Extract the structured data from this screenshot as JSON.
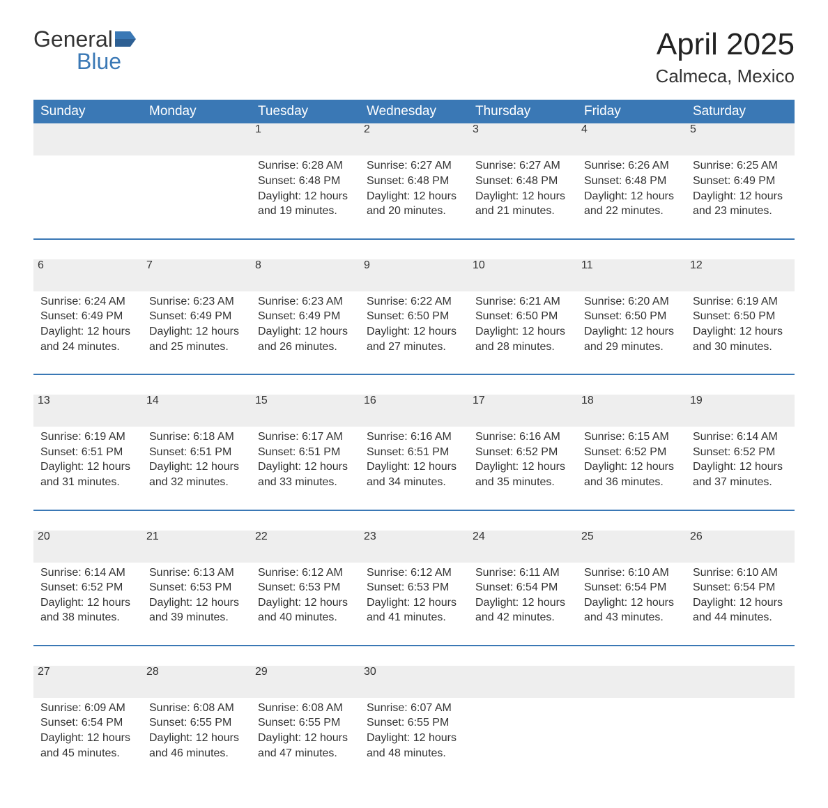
{
  "logo": {
    "word1": "General",
    "word2": "Blue",
    "accent_color": "#3a78b5"
  },
  "title": "April 2025",
  "subtitle": "Calmeca, Mexico",
  "colors": {
    "header_bg": "#3a78b5",
    "header_fg": "#ffffff",
    "daynum_bg": "#eeeeee",
    "daynum_fg": "#555555",
    "text": "#333333",
    "background": "#ffffff"
  },
  "day_headers": [
    "Sunday",
    "Monday",
    "Tuesday",
    "Wednesday",
    "Thursday",
    "Friday",
    "Saturday"
  ],
  "weeks": [
    [
      null,
      null,
      {
        "n": "1",
        "sr": "Sunrise: 6:28 AM",
        "ss": "Sunset: 6:48 PM",
        "dl": "Daylight: 12 hours and 19 minutes."
      },
      {
        "n": "2",
        "sr": "Sunrise: 6:27 AM",
        "ss": "Sunset: 6:48 PM",
        "dl": "Daylight: 12 hours and 20 minutes."
      },
      {
        "n": "3",
        "sr": "Sunrise: 6:27 AM",
        "ss": "Sunset: 6:48 PM",
        "dl": "Daylight: 12 hours and 21 minutes."
      },
      {
        "n": "4",
        "sr": "Sunrise: 6:26 AM",
        "ss": "Sunset: 6:48 PM",
        "dl": "Daylight: 12 hours and 22 minutes."
      },
      {
        "n": "5",
        "sr": "Sunrise: 6:25 AM",
        "ss": "Sunset: 6:49 PM",
        "dl": "Daylight: 12 hours and 23 minutes."
      }
    ],
    [
      {
        "n": "6",
        "sr": "Sunrise: 6:24 AM",
        "ss": "Sunset: 6:49 PM",
        "dl": "Daylight: 12 hours and 24 minutes."
      },
      {
        "n": "7",
        "sr": "Sunrise: 6:23 AM",
        "ss": "Sunset: 6:49 PM",
        "dl": "Daylight: 12 hours and 25 minutes."
      },
      {
        "n": "8",
        "sr": "Sunrise: 6:23 AM",
        "ss": "Sunset: 6:49 PM",
        "dl": "Daylight: 12 hours and 26 minutes."
      },
      {
        "n": "9",
        "sr": "Sunrise: 6:22 AM",
        "ss": "Sunset: 6:50 PM",
        "dl": "Daylight: 12 hours and 27 minutes."
      },
      {
        "n": "10",
        "sr": "Sunrise: 6:21 AM",
        "ss": "Sunset: 6:50 PM",
        "dl": "Daylight: 12 hours and 28 minutes."
      },
      {
        "n": "11",
        "sr": "Sunrise: 6:20 AM",
        "ss": "Sunset: 6:50 PM",
        "dl": "Daylight: 12 hours and 29 minutes."
      },
      {
        "n": "12",
        "sr": "Sunrise: 6:19 AM",
        "ss": "Sunset: 6:50 PM",
        "dl": "Daylight: 12 hours and 30 minutes."
      }
    ],
    [
      {
        "n": "13",
        "sr": "Sunrise: 6:19 AM",
        "ss": "Sunset: 6:51 PM",
        "dl": "Daylight: 12 hours and 31 minutes."
      },
      {
        "n": "14",
        "sr": "Sunrise: 6:18 AM",
        "ss": "Sunset: 6:51 PM",
        "dl": "Daylight: 12 hours and 32 minutes."
      },
      {
        "n": "15",
        "sr": "Sunrise: 6:17 AM",
        "ss": "Sunset: 6:51 PM",
        "dl": "Daylight: 12 hours and 33 minutes."
      },
      {
        "n": "16",
        "sr": "Sunrise: 6:16 AM",
        "ss": "Sunset: 6:51 PM",
        "dl": "Daylight: 12 hours and 34 minutes."
      },
      {
        "n": "17",
        "sr": "Sunrise: 6:16 AM",
        "ss": "Sunset: 6:52 PM",
        "dl": "Daylight: 12 hours and 35 minutes."
      },
      {
        "n": "18",
        "sr": "Sunrise: 6:15 AM",
        "ss": "Sunset: 6:52 PM",
        "dl": "Daylight: 12 hours and 36 minutes."
      },
      {
        "n": "19",
        "sr": "Sunrise: 6:14 AM",
        "ss": "Sunset: 6:52 PM",
        "dl": "Daylight: 12 hours and 37 minutes."
      }
    ],
    [
      {
        "n": "20",
        "sr": "Sunrise: 6:14 AM",
        "ss": "Sunset: 6:52 PM",
        "dl": "Daylight: 12 hours and 38 minutes."
      },
      {
        "n": "21",
        "sr": "Sunrise: 6:13 AM",
        "ss": "Sunset: 6:53 PM",
        "dl": "Daylight: 12 hours and 39 minutes."
      },
      {
        "n": "22",
        "sr": "Sunrise: 6:12 AM",
        "ss": "Sunset: 6:53 PM",
        "dl": "Daylight: 12 hours and 40 minutes."
      },
      {
        "n": "23",
        "sr": "Sunrise: 6:12 AM",
        "ss": "Sunset: 6:53 PM",
        "dl": "Daylight: 12 hours and 41 minutes."
      },
      {
        "n": "24",
        "sr": "Sunrise: 6:11 AM",
        "ss": "Sunset: 6:54 PM",
        "dl": "Daylight: 12 hours and 42 minutes."
      },
      {
        "n": "25",
        "sr": "Sunrise: 6:10 AM",
        "ss": "Sunset: 6:54 PM",
        "dl": "Daylight: 12 hours and 43 minutes."
      },
      {
        "n": "26",
        "sr": "Sunrise: 6:10 AM",
        "ss": "Sunset: 6:54 PM",
        "dl": "Daylight: 12 hours and 44 minutes."
      }
    ],
    [
      {
        "n": "27",
        "sr": "Sunrise: 6:09 AM",
        "ss": "Sunset: 6:54 PM",
        "dl": "Daylight: 12 hours and 45 minutes."
      },
      {
        "n": "28",
        "sr": "Sunrise: 6:08 AM",
        "ss": "Sunset: 6:55 PM",
        "dl": "Daylight: 12 hours and 46 minutes."
      },
      {
        "n": "29",
        "sr": "Sunrise: 6:08 AM",
        "ss": "Sunset: 6:55 PM",
        "dl": "Daylight: 12 hours and 47 minutes."
      },
      {
        "n": "30",
        "sr": "Sunrise: 6:07 AM",
        "ss": "Sunset: 6:55 PM",
        "dl": "Daylight: 12 hours and 48 minutes."
      },
      null,
      null,
      null
    ]
  ]
}
